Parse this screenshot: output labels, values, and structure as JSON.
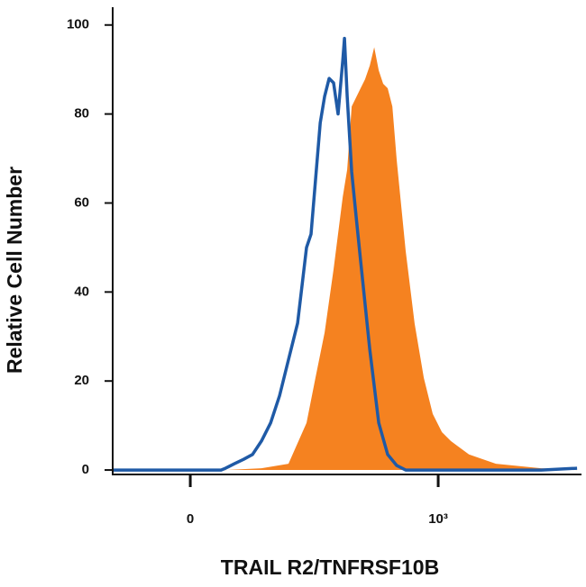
{
  "chart_data": {
    "type": "histogram-overlay",
    "xlabel": "TRAIL R2/TNFRSF10B",
    "ylabel": "Relative Cell Number",
    "xlim": [
      -313,
      1578
    ],
    "xticks": [
      0,
      {
        "value": 1000,
        "label": "10³"
      }
    ],
    "ylim": [
      -1,
      104
    ],
    "yticks": [
      0,
      20,
      40,
      60,
      80,
      100
    ],
    "series": [
      {
        "color": "#f58220",
        "fill": true,
        "x": [
          -313,
          142,
          287,
          396,
          469,
          505,
          542,
          578,
          615,
          633,
          651,
          687,
          705,
          724,
          742,
          760,
          778,
          796,
          815,
          833,
          869,
          905,
          942,
          978,
          1015,
          1051,
          1124,
          1233,
          1415,
          1560
        ],
        "values": [
          0,
          0,
          0.4,
          1.4,
          10.6,
          20.7,
          30.9,
          45.1,
          61.4,
          67.5,
          81.7,
          85.8,
          87.8,
          90.9,
          95,
          89.8,
          86.8,
          85.8,
          81.7,
          69.5,
          49.2,
          32.9,
          20.7,
          12.6,
          8.5,
          6.5,
          3.5,
          1.4,
          0.4,
          0
        ]
      },
      {
        "color": "#1f5aa6",
        "fill": false,
        "x": [
          -313,
          124,
          142,
          178,
          215,
          251,
          287,
          324,
          360,
          396,
          433,
          469,
          487,
          505,
          524,
          542,
          560,
          578,
          596,
          615,
          622,
          633,
          651,
          669,
          687,
          724,
          760,
          796,
          833,
          869,
          1415,
          1560
        ],
        "values": [
          0,
          0,
          0.4,
          1.4,
          2.4,
          3.5,
          6.5,
          10.6,
          16.7,
          24.8,
          33,
          50,
          53,
          65,
          78,
          84,
          88,
          87,
          80,
          92,
          97,
          84,
          67,
          57,
          47,
          27,
          10.6,
          3.5,
          1,
          0,
          0,
          0.4
        ]
      }
    ]
  }
}
